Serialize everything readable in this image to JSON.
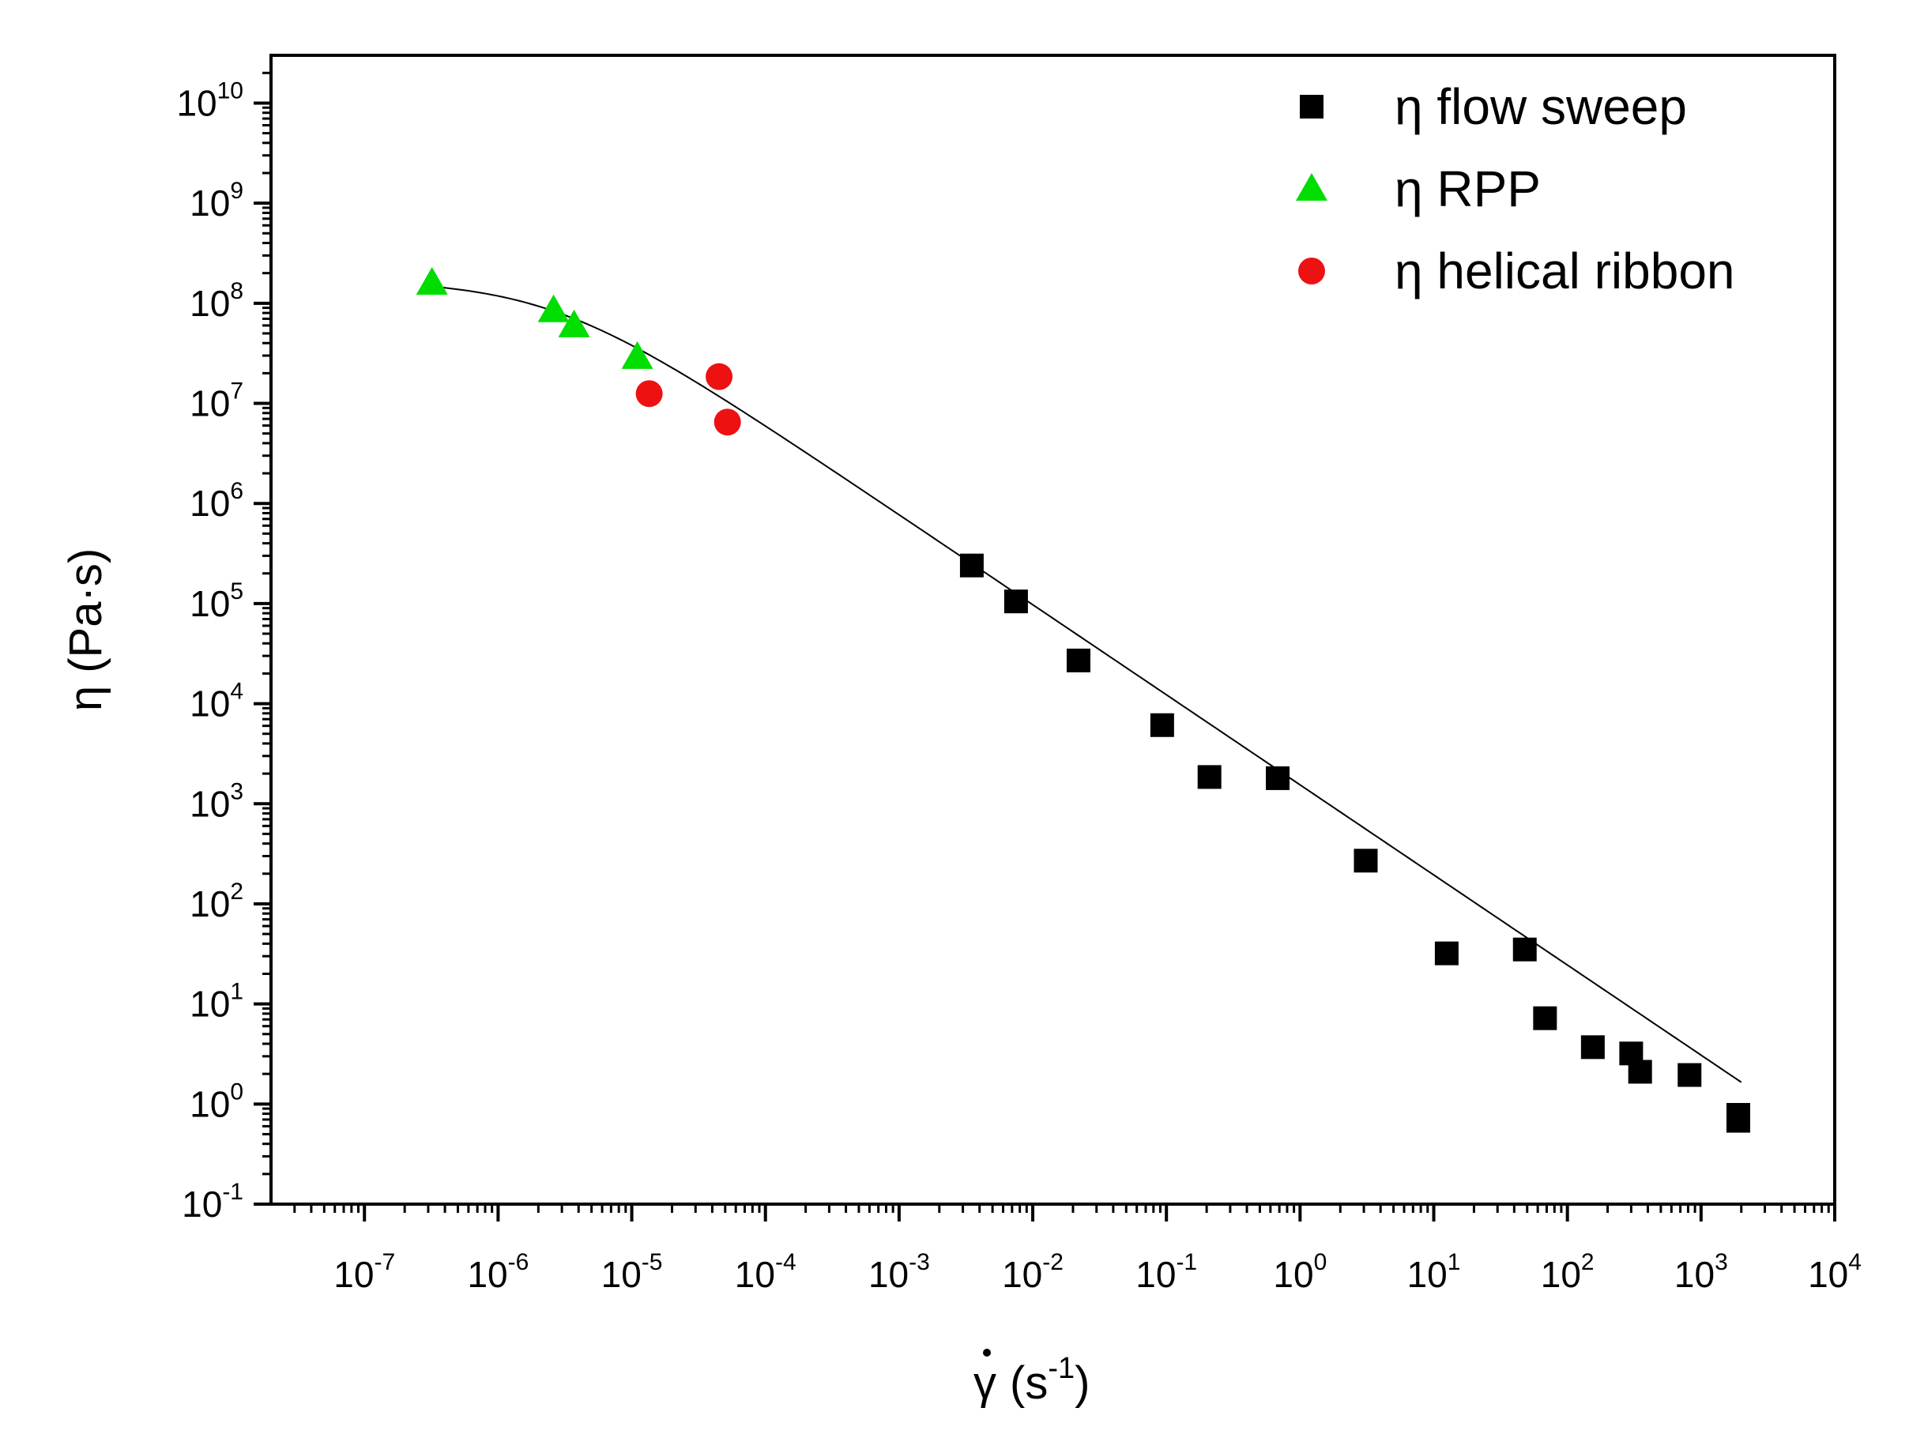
{
  "chart_data": {
    "type": "scatter",
    "title": "",
    "x_scale": "log",
    "y_scale": "log",
    "xlabel": {
      "symbol": "γ",
      "dot_accent": true,
      "unit_base": "s",
      "unit_exp": "-1",
      "text": "(s",
      "text_close": ")"
    },
    "ylabel": "η (Pa·s)",
    "xlim": [
      2e-08,
      10000
    ],
    "ylim": [
      0.1,
      30000000000
    ],
    "x_ticks": [
      {
        "base": "10",
        "exp": "-7",
        "value": 1e-07
      },
      {
        "base": "10",
        "exp": "-6",
        "value": 1e-06
      },
      {
        "base": "10",
        "exp": "-5",
        "value": 1e-05
      },
      {
        "base": "10",
        "exp": "-4",
        "value": 0.0001
      },
      {
        "base": "10",
        "exp": "-3",
        "value": 0.001
      },
      {
        "base": "10",
        "exp": "-2",
        "value": 0.01
      },
      {
        "base": "10",
        "exp": "-1",
        "value": 0.1
      },
      {
        "base": "10",
        "exp": "0",
        "value": 1
      },
      {
        "base": "10",
        "exp": "1",
        "value": 10
      },
      {
        "base": "10",
        "exp": "2",
        "value": 100
      },
      {
        "base": "10",
        "exp": "3",
        "value": 1000
      },
      {
        "base": "10",
        "exp": "4",
        "value": 10000
      }
    ],
    "y_ticks": [
      {
        "base": "10",
        "exp": "-1",
        "value": 0.1
      },
      {
        "base": "10",
        "exp": "0",
        "value": 1
      },
      {
        "base": "10",
        "exp": "1",
        "value": 10
      },
      {
        "base": "10",
        "exp": "2",
        "value": 100
      },
      {
        "base": "10",
        "exp": "3",
        "value": 1000
      },
      {
        "base": "10",
        "exp": "4",
        "value": 10000
      },
      {
        "base": "10",
        "exp": "5",
        "value": 100000
      },
      {
        "base": "10",
        "exp": "6",
        "value": 1000000
      },
      {
        "base": "10",
        "exp": "7",
        "value": 10000000
      },
      {
        "base": "10",
        "exp": "8",
        "value": 100000000
      },
      {
        "base": "10",
        "exp": "9",
        "value": 1000000000
      },
      {
        "base": "10",
        "exp": "10",
        "value": 10000000000
      }
    ],
    "legend_position": "top-right",
    "series": [
      {
        "name": "η flow sweep",
        "marker": "square",
        "color": "#000000",
        "points": [
          [
            0.0035,
            240000
          ],
          [
            0.0075,
            105000
          ],
          [
            0.022,
            27000
          ],
          [
            0.093,
            6100
          ],
          [
            0.21,
            1850
          ],
          [
            0.68,
            1800
          ],
          [
            3.1,
            270
          ],
          [
            12.5,
            32
          ],
          [
            48,
            35
          ],
          [
            68,
            7.2
          ],
          [
            155,
            3.7
          ],
          [
            300,
            3.2
          ],
          [
            350,
            2.1
          ],
          [
            820,
            1.95
          ],
          [
            1900,
            0.78
          ],
          [
            1900,
            0.68
          ]
        ]
      },
      {
        "name": "η RPP",
        "marker": "triangle",
        "color": "#00dd00",
        "points": [
          [
            3.2e-07,
            160000000
          ],
          [
            2.6e-06,
            85000000
          ],
          [
            3.7e-06,
            60000000
          ],
          [
            1.1e-05,
            29000000
          ]
        ]
      },
      {
        "name": "η helical ribbon",
        "marker": "circle",
        "color": "#ee1111",
        "points": [
          [
            1.35e-05,
            12500000
          ],
          [
            4.5e-05,
            18500000
          ],
          [
            5.2e-05,
            6500000
          ]
        ]
      }
    ],
    "fit_line": {
      "model": "Cross-type",
      "eta0": 170000000,
      "lambda": 400000,
      "n_slope": -0.9,
      "x_range": [
        3.2e-07,
        2000
      ],
      "color": "#000000"
    }
  }
}
